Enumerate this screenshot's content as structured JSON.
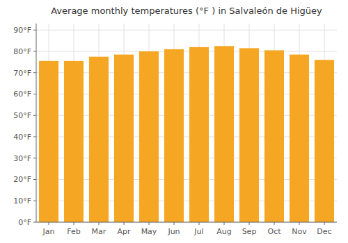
{
  "chart_data": {
    "type": "bar",
    "title": "Average monthly temperatures (°F ) in Salvaleón de Higüey",
    "categories": [
      "Jan",
      "Feb",
      "Mar",
      "Apr",
      "May",
      "Jun",
      "Jul",
      "Aug",
      "Sep",
      "Oct",
      "Nov",
      "Dec"
    ],
    "values": [
      75.5,
      75.5,
      77.5,
      78.5,
      80.0,
      81.0,
      82.0,
      82.5,
      81.5,
      80.5,
      78.5,
      76.0
    ],
    "color": "#F5A623",
    "ylim": [
      0,
      93
    ],
    "yticks": [
      {
        "value": 0,
        "label": "0°F"
      },
      {
        "value": 10,
        "label": "10°F"
      },
      {
        "value": 20,
        "label": "20°F"
      },
      {
        "value": 30,
        "label": "30°F"
      },
      {
        "value": 40,
        "label": "40°F"
      },
      {
        "value": 50,
        "label": "50°F"
      },
      {
        "value": 60,
        "label": "60°F"
      },
      {
        "value": 70,
        "label": "70°F"
      },
      {
        "value": 80,
        "label": "80°F"
      },
      {
        "value": 90,
        "label": "90°F"
      }
    ],
    "grid": true
  }
}
